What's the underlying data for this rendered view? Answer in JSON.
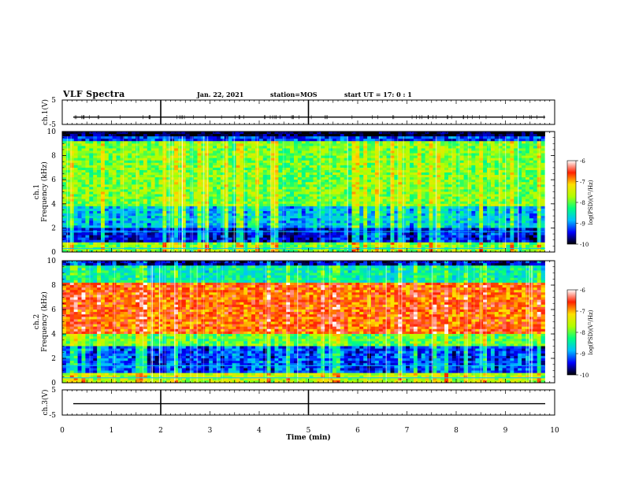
{
  "header": {
    "title": "VLF Spectra",
    "date": "Jan. 22, 2021",
    "station": "station=MOS",
    "start": "start  UT  =   17: 0  : 1"
  },
  "chart_data": [
    {
      "type": "line",
      "name": "ch1-waveform",
      "ylabel": "ch.1(V)",
      "ylim": [
        -5,
        5
      ],
      "yticks": [
        "5",
        "-5"
      ],
      "x_unit": "min",
      "xlim": [
        0,
        10
      ],
      "baseline_value": -2,
      "markers_x": [
        2,
        5
      ]
    },
    {
      "type": "heatmap",
      "name": "ch1-spectrogram",
      "ylabel": "ch.1\nFrequency (kHz)",
      "ylim": [
        0,
        10
      ],
      "yticks": [
        "0",
        "2",
        "4",
        "6",
        "8",
        "10"
      ],
      "xlim": [
        0,
        10
      ],
      "data_end_x": 9.8,
      "colorbar": {
        "label": "log(PSD)(V²/Hz)",
        "range": [
          -10,
          -6
        ],
        "ticks": [
          "-6",
          "-7",
          "-8",
          "-9",
          "-10"
        ],
        "colors": [
          "#000000",
          "#0000ff",
          "#00c0ff",
          "#00ff80",
          "#b0ff00",
          "#ffe000",
          "#ff2000",
          "#ffffff"
        ]
      },
      "reference_lines_khz": [
        0.3,
        1.7
      ],
      "reference_line_color": "#00c8ff"
    },
    {
      "type": "heatmap",
      "name": "ch2-spectrogram",
      "ylabel": "ch.2\nFrequency (kHz)",
      "ylim": [
        0,
        10
      ],
      "yticks": [
        "0",
        "2",
        "4",
        "6",
        "8",
        "10"
      ],
      "xlim": [
        0,
        10
      ],
      "data_end_x": 9.8,
      "colorbar": {
        "label": "log(PSD)(V²/Hz)",
        "range": [
          -10,
          -6
        ],
        "ticks": [
          "-6",
          "-7",
          "-8",
          "-9",
          "-10"
        ],
        "colors": [
          "#000000",
          "#0000ff",
          "#00c0ff",
          "#00ff80",
          "#b0ff00",
          "#ffe000",
          "#ff2000",
          "#ffffff"
        ]
      },
      "reference_lines_khz": [
        0.4,
        1.4
      ],
      "reference_line_color": "#00c8ff"
    },
    {
      "type": "line",
      "name": "ch3-waveform",
      "ylabel": "ch.3(V)",
      "ylim": [
        -5,
        5
      ],
      "yticks": [
        "5",
        "-5"
      ],
      "xlim": [
        0,
        10
      ],
      "baseline_value": -0.5,
      "markers_x": [
        2,
        5
      ]
    }
  ],
  "x_axis": {
    "label": "Time  (min)",
    "ticks": [
      "0",
      "1",
      "2",
      "3",
      "4",
      "5",
      "6",
      "7",
      "8",
      "9",
      "10"
    ]
  },
  "colors": {
    "background": "#ffffff",
    "axis": "#000000",
    "trace": "#000000"
  }
}
